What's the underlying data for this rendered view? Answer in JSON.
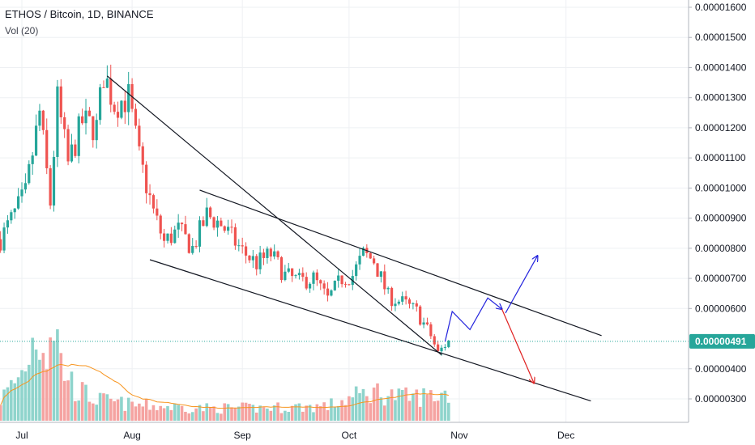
{
  "header": {
    "symbol_line": "ETHOS / Bitcoin, 1D, BINANCE",
    "volume_label": "Vol (20)"
  },
  "colors": {
    "up": "#26a69a",
    "down": "#ef5350",
    "up_volume": "#8fd4cc",
    "down_volume": "#f5a3a1",
    "volume_ma": "#f7941d",
    "trendline": "#131722",
    "projection_up": "#2323dd",
    "projection_down": "#e02020",
    "price_tag": "#26a69a",
    "grid": "#eef0f3",
    "axis_text": "#131722"
  },
  "chart_data": {
    "type": "candlestick",
    "title": "ETHOS / Bitcoin, 1D, BINANCE",
    "price_axis": {
      "ticks": [
        "0.00001600",
        "0.00001500",
        "0.00001400",
        "0.00001300",
        "0.00001200",
        "0.00001100",
        "0.00001000",
        "0.00000900",
        "0.00000800",
        "0.00000700",
        "0.00000600",
        "0.00000400",
        "0.00000300"
      ],
      "range": [
        2.3e-06,
        1.62e-05
      ]
    },
    "time_axis": {
      "ticks": [
        "Jul",
        "Aug",
        "Sep",
        "Oct",
        "Nov",
        "Dec"
      ],
      "tick_dates": [
        "2018-07-01",
        "2018-08-01",
        "2018-09-01",
        "2018-10-01",
        "2018-11-01",
        "2018-12-01"
      ],
      "range": [
        "2018-06-25",
        "2018-12-31"
      ]
    },
    "current_price": {
      "label": "0.00000491",
      "value": 4.91e-06
    },
    "volume_ma_label": "Vol (20)",
    "anchors_close": [
      [
        "2018-06-25",
        8.3e-06
      ],
      [
        "2018-07-02",
        9.8e-06
      ],
      [
        "2018-07-06",
        1.25e-05
      ],
      [
        "2018-07-09",
        9.5e-06
      ],
      [
        "2018-07-11",
        1.29e-05
      ],
      [
        "2018-07-14",
        1.08e-05
      ],
      [
        "2018-07-18",
        1.22e-05
      ],
      [
        "2018-07-22",
        1.2e-05
      ],
      [
        "2018-07-24",
        1.38e-05
      ],
      [
        "2018-07-27",
        1.28e-05
      ],
      [
        "2018-07-31",
        1.3e-05
      ],
      [
        "2018-08-03",
        1.1e-05
      ],
      [
        "2018-08-07",
        9.2e-06
      ],
      [
        "2018-08-10",
        8.2e-06
      ],
      [
        "2018-08-14",
        8.6e-06
      ],
      [
        "2018-08-18",
        8e-06
      ],
      [
        "2018-08-22",
        9.1e-06
      ],
      [
        "2018-08-26",
        8.8e-06
      ],
      [
        "2018-09-01",
        7.9e-06
      ],
      [
        "2018-09-05",
        7.5e-06
      ],
      [
        "2018-09-09",
        7.8e-06
      ],
      [
        "2018-09-13",
        7.1e-06
      ],
      [
        "2018-09-17",
        6.9e-06
      ],
      [
        "2018-09-21",
        7e-06
      ],
      [
        "2018-09-25",
        6.3e-06
      ],
      [
        "2018-09-29",
        7e-06
      ],
      [
        "2018-10-02",
        7.1e-06
      ],
      [
        "2018-10-05",
        7.8e-06
      ],
      [
        "2018-10-08",
        7.6e-06
      ],
      [
        "2018-10-12",
        6.4e-06
      ],
      [
        "2018-10-16",
        6.2e-06
      ],
      [
        "2018-10-20",
        5.9e-06
      ],
      [
        "2018-10-24",
        5.1e-06
      ],
      [
        "2018-10-26",
        4.5e-06
      ],
      [
        "2018-10-28",
        4.8e-06
      ],
      [
        "2018-10-29",
        4.9e-06
      ]
    ],
    "volume_anchors": [
      [
        "2018-06-25",
        0.2
      ],
      [
        "2018-07-01",
        0.45
      ],
      [
        "2018-07-05",
        0.85
      ],
      [
        "2018-07-08",
        0.7
      ],
      [
        "2018-07-10",
        1.0
      ],
      [
        "2018-07-12",
        0.55
      ],
      [
        "2018-07-16",
        0.3
      ],
      [
        "2018-07-22",
        0.2
      ],
      [
        "2018-08-01",
        0.15
      ],
      [
        "2018-08-20",
        0.12
      ],
      [
        "2018-09-05",
        0.12
      ],
      [
        "2018-09-25",
        0.14
      ],
      [
        "2018-10-02",
        0.22
      ],
      [
        "2018-10-08",
        0.28
      ],
      [
        "2018-10-16",
        0.22
      ],
      [
        "2018-10-25",
        0.24
      ],
      [
        "2018-10-29",
        0.26
      ]
    ],
    "trendlines": [
      {
        "name": "upper-descending",
        "points": [
          [
            "2018-07-25",
            1.372e-05
          ],
          [
            "2018-10-27",
            4.46e-06
          ]
        ]
      },
      {
        "name": "channel-top",
        "points": [
          [
            "2018-08-20",
            9.93e-06
          ],
          [
            "2018-12-11",
            5.1e-06
          ]
        ]
      },
      {
        "name": "channel-bottom",
        "points": [
          [
            "2018-08-06",
            7.62e-06
          ],
          [
            "2018-12-08",
            2.93e-06
          ]
        ]
      }
    ],
    "projections": [
      {
        "color": "up",
        "points": [
          [
            "2018-10-28",
            4.9e-06
          ],
          [
            "2018-10-30",
            5.9e-06
          ],
          [
            "2018-11-04",
            5.3e-06
          ],
          [
            "2018-11-09",
            6.35e-06
          ],
          [
            "2018-11-13",
            5.98e-06
          ]
        ]
      },
      {
        "color": "up",
        "points": [
          [
            "2018-11-14",
            5.85e-06
          ],
          [
            "2018-11-23",
            7.75e-06
          ]
        ]
      },
      {
        "color": "down",
        "points": [
          [
            "2018-11-13",
            5.98e-06
          ],
          [
            "2018-11-22",
            3.52e-06
          ]
        ]
      }
    ]
  }
}
